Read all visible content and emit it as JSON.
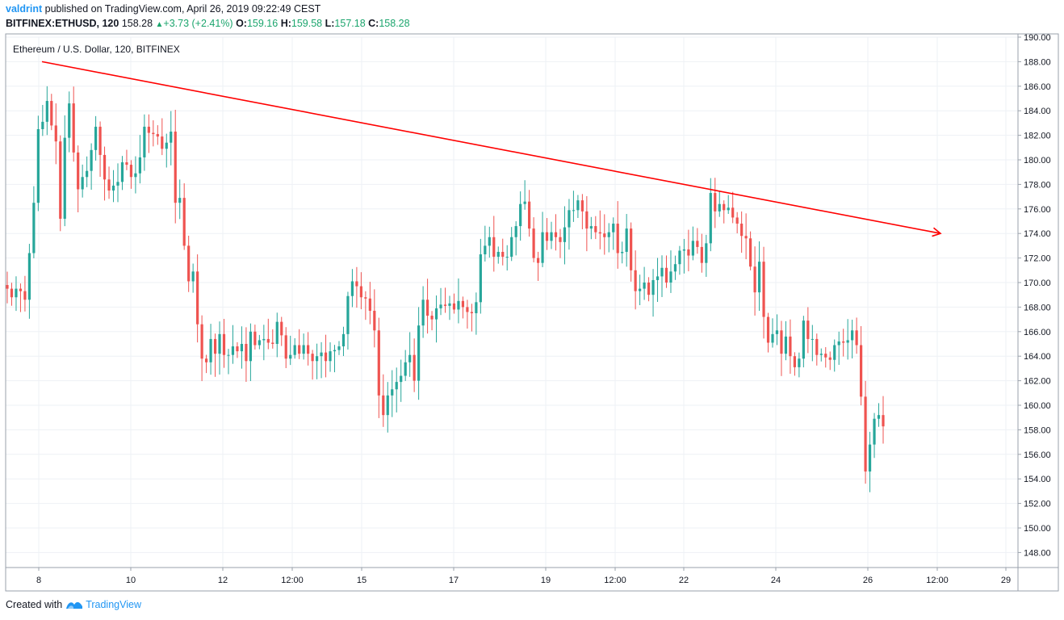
{
  "header": {
    "author": "valdrint",
    "published_text": "published on TradingView.com, April 26, 2019 09:22:49 CEST",
    "symbol": "BITFINEX:ETHUSD, 120",
    "last": "158.28",
    "change": "+3.73 (+2.41%)",
    "o_label": "O:",
    "o_value": "159.16",
    "h_label": "H:",
    "h_value": "159.58",
    "l_label": "L:",
    "l_value": "157.18",
    "c_label": "C:",
    "c_value": "158.28"
  },
  "footer": {
    "created_with": "Created with",
    "brand": "TradingView"
  },
  "colors": {
    "up": "#26a69a",
    "down": "#ef5350",
    "trendline": "#ff0000",
    "grid": "#eef1f5",
    "border": "#9aa1ab",
    "brand": "#2196f3"
  },
  "chart_data": {
    "type": "candlestick",
    "title": "Ethereum / U.S. Dollar, 120, BITFINEX",
    "ylim": [
      147,
      190
    ],
    "y_ticks": [
      "190.00",
      "188.00",
      "186.00",
      "184.00",
      "182.00",
      "180.00",
      "178.00",
      "176.00",
      "174.00",
      "172.00",
      "170.00",
      "168.00",
      "166.00",
      "164.00",
      "162.00",
      "160.00",
      "158.00",
      "156.00",
      "154.00",
      "152.00",
      "150.00",
      "148.00"
    ],
    "x_ticks": [
      "8",
      "10",
      "12",
      "12:00",
      "15",
      "17",
      "19",
      "12:00",
      "22",
      "24",
      "26",
      "12:00",
      "29"
    ],
    "grid": true,
    "trendline": {
      "start": {
        "date": "Apr 8",
        "value": 188.0
      },
      "end": {
        "date": "Apr 27 12:00",
        "value": 174.0
      },
      "arrow": true
    },
    "close_series": [
      169.5,
      168.8,
      169.5,
      169.3,
      168.6,
      172.4,
      176.5,
      182.5,
      183.1,
      184.8,
      182.8,
      181.5,
      175.2,
      181.8,
      184.6,
      180.6,
      177.6,
      178.6,
      179.1,
      180.8,
      182.7,
      180.4,
      178.4,
      177.5,
      177.9,
      178.2,
      179.8,
      179.6,
      178.6,
      178.9,
      180.2,
      182.7,
      182.2,
      182.1,
      181.9,
      180.9,
      181.4,
      182.3,
      176.5,
      176.9,
      173.0,
      170.1,
      170.9,
      166.6,
      163.8,
      163.5,
      165.4,
      164.2,
      165.8,
      164.1,
      164.1,
      164.8,
      164.4,
      165.0,
      163.6,
      166.0,
      164.9,
      165.3,
      165.4,
      165.1,
      165.0,
      166.8,
      165.7,
      163.8,
      164.1,
      164.9,
      164.2,
      164.9,
      164.2,
      163.6,
      164.0,
      164.3,
      163.6,
      164.4,
      164.5,
      164.8,
      165.8,
      168.9,
      170.1,
      169.7,
      168.8,
      168.7,
      167.7,
      166.1,
      160.8,
      159.2,
      160.8,
      161.3,
      161.9,
      162.4,
      163.5,
      164.1,
      162.0,
      166.5,
      168.6,
      167.3,
      167.0,
      167.9,
      168.2,
      168.1,
      168.3,
      167.8,
      168.5,
      168.0,
      167.6,
      167.5,
      168.4,
      172.3,
      173.0,
      173.7,
      172.1,
      172.5,
      172.1,
      172.1,
      173.7,
      174.6,
      176.4,
      176.6,
      174.4,
      172.0,
      171.6,
      174.1,
      173.4,
      174.1,
      173.7,
      173.3,
      174.5,
      175.9,
      175.9,
      176.7,
      175.8,
      174.4,
      174.6,
      174.1,
      174.0,
      173.7,
      174.1,
      174.8,
      172.4,
      172.5,
      174.4,
      171.0,
      169.3,
      169.5,
      170.0,
      169.0,
      170.2,
      170.5,
      171.2,
      170.0,
      170.9,
      171.5,
      172.6,
      172.7,
      172.2,
      173.4,
      172.9,
      171.6,
      173.2,
      177.3,
      175.8,
      176.4,
      175.9,
      176.1,
      175.3,
      174.8,
      173.8,
      173.6,
      171.3,
      169.2,
      171.7,
      167.2,
      165.1,
      165.8,
      166.1,
      164.2,
      165.6,
      164.0,
      163.1,
      163.8,
      166.9,
      165.4,
      165.4,
      164.1,
      164.2,
      163.9,
      163.7,
      164.9,
      165.2,
      165.1,
      165.3,
      166.1,
      164.9,
      160.7,
      154.6,
      156.8,
      158.9,
      159.2,
      158.28
    ]
  }
}
